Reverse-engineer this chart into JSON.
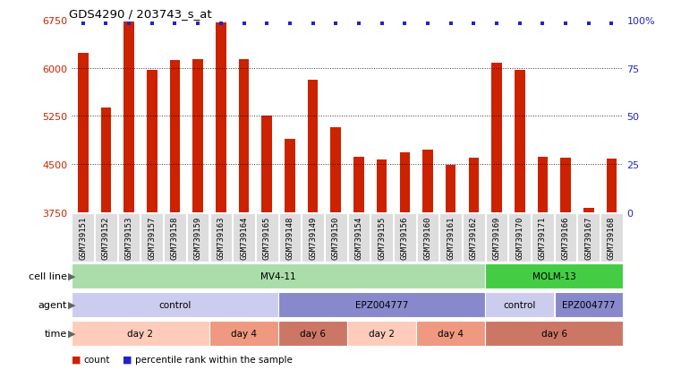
{
  "title": "GDS4290 / 203743_s_at",
  "samples": [
    "GSM739151",
    "GSM739152",
    "GSM739153",
    "GSM739157",
    "GSM739158",
    "GSM739159",
    "GSM739163",
    "GSM739164",
    "GSM739165",
    "GSM739148",
    "GSM739149",
    "GSM739150",
    "GSM739154",
    "GSM739155",
    "GSM739156",
    "GSM739160",
    "GSM739161",
    "GSM739162",
    "GSM739169",
    "GSM739170",
    "GSM739171",
    "GSM739166",
    "GSM739167",
    "GSM739168"
  ],
  "counts": [
    6230,
    5380,
    6720,
    5960,
    6120,
    6130,
    6700,
    6140,
    5250,
    4900,
    5820,
    5080,
    4620,
    4570,
    4680,
    4720,
    4490,
    4600,
    6080,
    5960,
    4620,
    4600,
    3820,
    4580
  ],
  "bar_color": "#cc2200",
  "dot_color": "#2222cc",
  "ylim_left": [
    3750,
    6750
  ],
  "yticks_left": [
    3750,
    4500,
    5250,
    6000,
    6750
  ],
  "ylim_right": [
    0,
    100
  ],
  "yticks_right": [
    0,
    25,
    50,
    75,
    100
  ],
  "grid_values": [
    4500,
    5250,
    6000
  ],
  "cell_line_row": {
    "label": "cell line",
    "segments": [
      {
        "text": "MV4-11",
        "start": 0,
        "end": 18,
        "color": "#aaddaa"
      },
      {
        "text": "MOLM-13",
        "start": 18,
        "end": 24,
        "color": "#44cc44"
      }
    ]
  },
  "agent_row": {
    "label": "agent",
    "segments": [
      {
        "text": "control",
        "start": 0,
        "end": 9,
        "color": "#ccccee"
      },
      {
        "text": "EPZ004777",
        "start": 9,
        "end": 18,
        "color": "#8888cc"
      },
      {
        "text": "control",
        "start": 18,
        "end": 21,
        "color": "#ccccee"
      },
      {
        "text": "EPZ004777",
        "start": 21,
        "end": 24,
        "color": "#8888cc"
      }
    ]
  },
  "time_row": {
    "label": "time",
    "segments": [
      {
        "text": "day 2",
        "start": 0,
        "end": 6,
        "color": "#ffccbb"
      },
      {
        "text": "day 4",
        "start": 6,
        "end": 9,
        "color": "#ee9980"
      },
      {
        "text": "day 6",
        "start": 9,
        "end": 12,
        "color": "#cc7766"
      },
      {
        "text": "day 2",
        "start": 12,
        "end": 15,
        "color": "#ffccbb"
      },
      {
        "text": "day 4",
        "start": 15,
        "end": 18,
        "color": "#ee9980"
      },
      {
        "text": "day 6",
        "start": 18,
        "end": 24,
        "color": "#cc7766"
      }
    ]
  },
  "legend_count_color": "#cc2200",
  "legend_dot_color": "#2222cc",
  "background_color": "#ffffff",
  "tick_label_color_left": "#cc2200",
  "tick_label_color_right": "#2222cc",
  "tick_bg_color": "#dddddd"
}
